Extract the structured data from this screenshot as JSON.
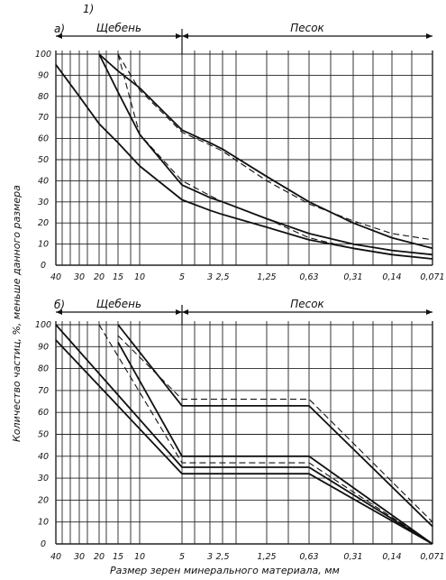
{
  "figure_number": "1)",
  "ylabel": "Количество частиц, %, меньше данного размера",
  "xlabel": "Размер зерен минерального материала, мм",
  "chart_data": [
    {
      "type": "line",
      "panel_label": "а)",
      "zones": [
        "Щебень",
        "Песок"
      ],
      "x_ticks": [
        "40",
        "30",
        "20",
        "15",
        "10",
        "5",
        "3",
        "2,5",
        "1,25",
        "0,63",
        "0,31",
        "0,14",
        "0,071"
      ],
      "y_ticks": [
        100,
        90,
        80,
        70,
        60,
        50,
        40,
        30,
        20,
        10,
        0
      ],
      "ylim": [
        0,
        100
      ],
      "grid": true,
      "series": [
        {
          "style": "solid",
          "x": [
            "40",
            "30",
            "20",
            "15",
            "10",
            "5",
            "3",
            "2,5",
            "1,25",
            "0,63",
            "0,31",
            "0,14",
            "0,071"
          ],
          "y": [
            95,
            80,
            67,
            58,
            47,
            31,
            26,
            24,
            18,
            12,
            8,
            5,
            3
          ]
        },
        {
          "style": "solid",
          "x": [
            "20",
            "15",
            "10",
            "5",
            "3",
            "2,5",
            "1,25",
            "0,63",
            "0,31",
            "0,14",
            "0,071"
          ],
          "y": [
            100,
            82,
            62,
            38,
            32,
            30,
            22,
            15,
            10,
            7,
            5
          ]
        },
        {
          "style": "solid",
          "x": [
            "20",
            "15",
            "10",
            "5",
            "3",
            "2,5",
            "1,25",
            "0,63",
            "0,31",
            "0,14",
            "0,071"
          ],
          "y": [
            100,
            92,
            84,
            64,
            58,
            55,
            42,
            30,
            20,
            13,
            8
          ]
        },
        {
          "style": "dashed",
          "x": [
            "15",
            "10",
            "5",
            "3",
            "2,5",
            "1,25",
            "0,63",
            "0,31",
            "0,14",
            "0,071"
          ],
          "y": [
            100,
            83,
            63,
            57,
            54,
            40,
            29,
            21,
            15,
            12
          ]
        },
        {
          "style": "dashed",
          "x": [
            "15",
            "10",
            "5",
            "3",
            "2,5",
            "1,25",
            "0,63",
            "0,31",
            "0,14",
            "0,071"
          ],
          "y": [
            100,
            62,
            40,
            33,
            30,
            22,
            13,
            8,
            5,
            3
          ]
        }
      ]
    },
    {
      "type": "line",
      "panel_label": "б)",
      "zones": [
        "Щебень",
        "Песок"
      ],
      "x_ticks": [
        "40",
        "30",
        "20",
        "15",
        "10",
        "5",
        "3",
        "2,5",
        "1,25",
        "0,63",
        "0,31",
        "0,14",
        "0,071"
      ],
      "y_ticks": [
        100,
        90,
        80,
        70,
        60,
        50,
        40,
        30,
        20,
        10,
        0
      ],
      "ylim": [
        0,
        100
      ],
      "grid": true,
      "series": [
        {
          "style": "solid",
          "x": [
            "40",
            "5",
            "0,63",
            "0,071"
          ],
          "y": [
            100,
            35,
            35,
            0
          ]
        },
        {
          "style": "solid",
          "x": [
            "40",
            "5",
            "0,63",
            "0,071"
          ],
          "y": [
            93,
            32,
            32,
            0
          ]
        },
        {
          "style": "solid",
          "x": [
            "15",
            "5",
            "0,63",
            "0,071"
          ],
          "y": [
            100,
            63,
            63,
            8
          ]
        },
        {
          "style": "solid",
          "x": [
            "15",
            "5",
            "0,63",
            "0,071"
          ],
          "y": [
            92,
            40,
            40,
            0
          ]
        },
        {
          "style": "dashed",
          "x": [
            "20",
            "5",
            "0,63",
            "0,071"
          ],
          "y": [
            100,
            37,
            37,
            0
          ]
        },
        {
          "style": "dashed",
          "x": [
            "15",
            "5",
            "0,63",
            "0,071"
          ],
          "y": [
            95,
            66,
            66,
            10
          ]
        }
      ]
    }
  ]
}
